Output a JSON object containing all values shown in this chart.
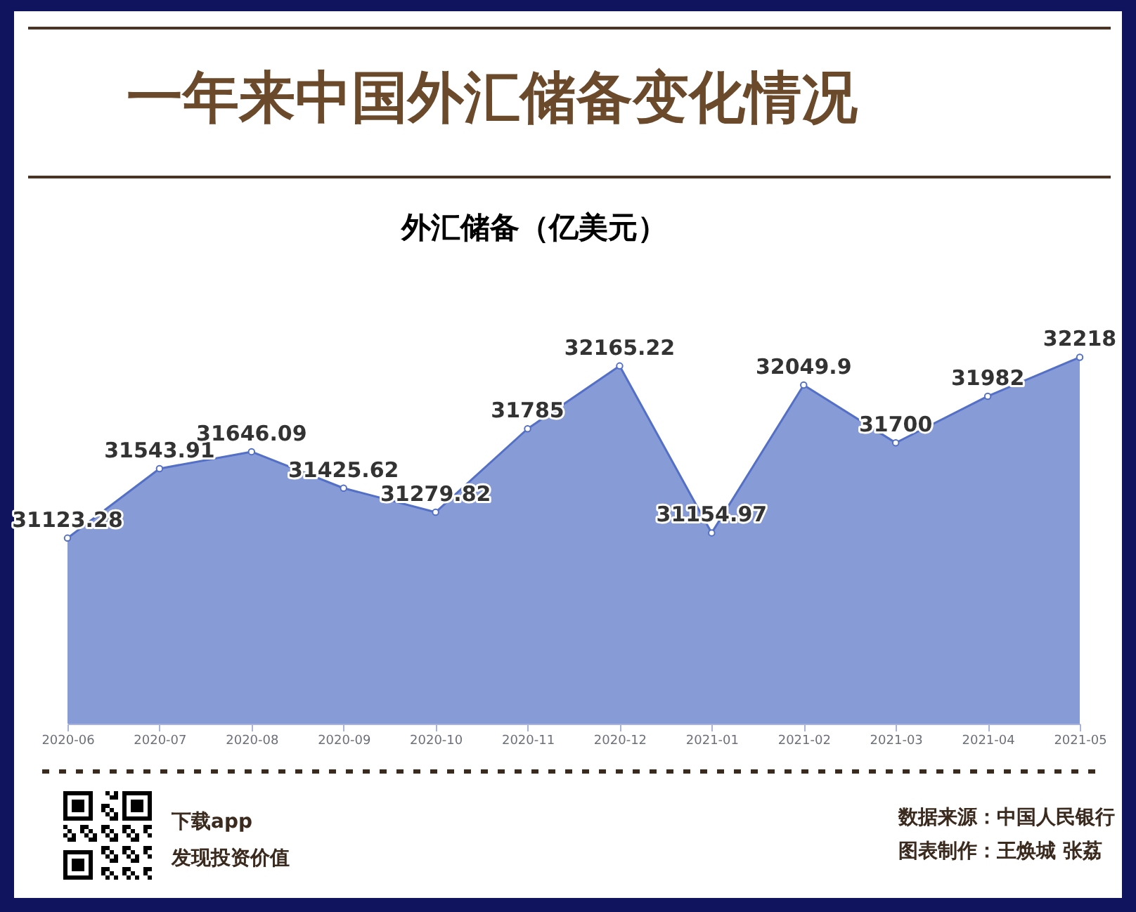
{
  "chart_data": {
    "type": "area",
    "title": "一年来中国外汇储备变化情况",
    "subtitle": "外汇储备（亿美元）",
    "categories": [
      "2020-06",
      "2020-07",
      "2020-08",
      "2020-09",
      "2020-10",
      "2020-11",
      "2020-12",
      "2021-01",
      "2021-02",
      "2021-03",
      "2021-04",
      "2021-05"
    ],
    "values": [
      31123.28,
      31543.91,
      31646.09,
      31425.62,
      31279.82,
      31785,
      32165.22,
      31154.97,
      32049.9,
      31700,
      31982,
      32218
    ],
    "color": "#5470c6",
    "data_labels": true,
    "marker": "circle",
    "tick_labels": "x",
    "annotations": [
      "下载app",
      "发现投资价值",
      "数据来源：中国人民银行",
      "图表制作：王焕城 张荔"
    ]
  }
}
